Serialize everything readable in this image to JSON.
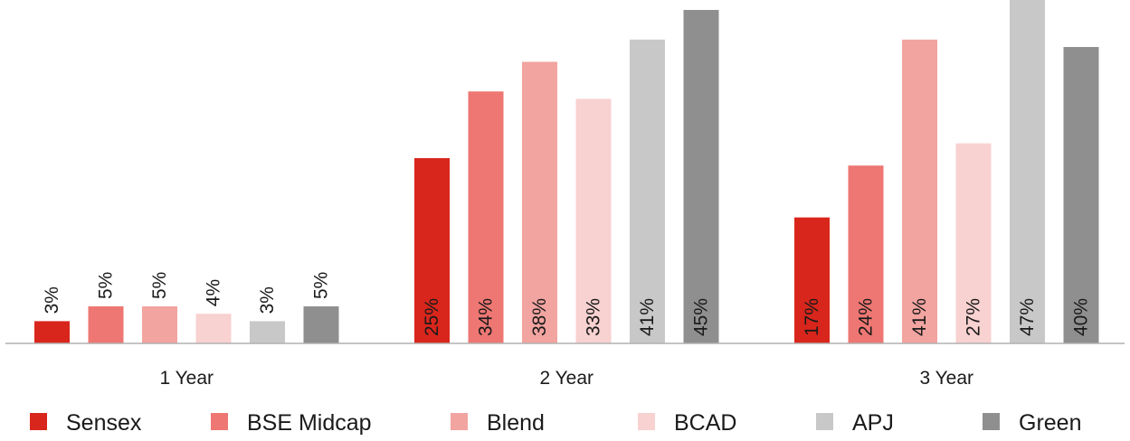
{
  "chart_data": {
    "type": "bar",
    "categories": [
      "1 Year",
      "2 Year",
      "3 Year"
    ],
    "series": [
      {
        "name": "Sensex",
        "color": "#d9261c",
        "values": [
          3,
          25,
          17
        ]
      },
      {
        "name": "BSE Midcap",
        "color": "#ee7773",
        "values": [
          5,
          34,
          24
        ]
      },
      {
        "name": "Blend",
        "color": "#f2a4a0",
        "values": [
          5,
          38,
          41
        ]
      },
      {
        "name": "BCAD",
        "color": "#f8d2d0",
        "values": [
          4,
          33,
          27
        ]
      },
      {
        "name": "APJ",
        "color": "#c8c8c8",
        "values": [
          3,
          41,
          47
        ]
      },
      {
        "name": "Green",
        "color": "#8f8f8f",
        "values": [
          5,
          45,
          40
        ]
      }
    ],
    "value_suffix": "%",
    "legend_position": "bottom",
    "grid": false,
    "ylim": [
      0,
      46
    ]
  }
}
